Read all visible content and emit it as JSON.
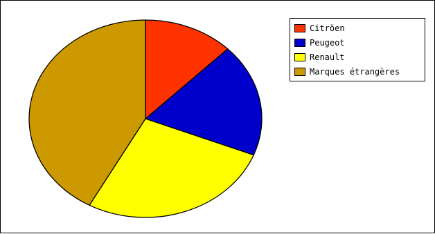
{
  "chart_data": {
    "type": "pie",
    "title": "",
    "series": [
      {
        "values": [
          12.5,
          18.5,
          27,
          42
        ]
      }
    ],
    "categories": [
      "Citröen",
      "Peugeot",
      "Renault",
      "Marques étrangères"
    ],
    "colors": [
      "#ff3300",
      "#0000cc",
      "#ffff00",
      "#cc9900"
    ],
    "legend_position": "top-right",
    "start_angle_deg": 0,
    "direction": "clockwise"
  },
  "legend": {
    "items": [
      {
        "label": "Citröen",
        "color": "#ff3300"
      },
      {
        "label": "Peugeot",
        "color": "#0000cc"
      },
      {
        "label": "Renault",
        "color": "#ffff00"
      },
      {
        "label": "Marques étrangères",
        "color": "#cc9900"
      }
    ]
  }
}
